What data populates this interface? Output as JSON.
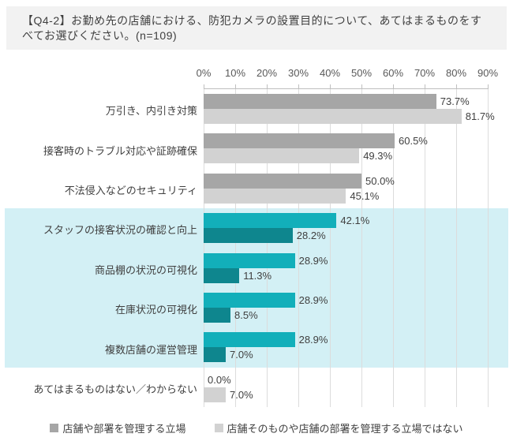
{
  "title": "【Q4-2】お勤め先の店舗における、防犯カメラの設置目的について、あてはまるものをすべてお選びください。(n=109)",
  "chart_data": {
    "type": "bar",
    "orientation": "horizontal",
    "title": "",
    "xlabel": "",
    "ylabel": "",
    "xlim": [
      0,
      90
    ],
    "x_ticks": [
      "0%",
      "10%",
      "20%",
      "30%",
      "40%",
      "50%",
      "60%",
      "70%",
      "80%",
      "90%"
    ],
    "grid": true,
    "legend_position": "bottom",
    "categories": [
      "万引き、内引き対策",
      "接客時のトラブル対応や証跡確保",
      "不法侵入などのセキュリティ",
      "スタッフの接客状況の確認と向上",
      "商品棚の状況の可視化",
      "在庫状況の可視化",
      "複数店舗の運営管理",
      "あてはまるものはない／わからない"
    ],
    "series": [
      {
        "name": "店舗や部署を管理する立場",
        "values": [
          73.7,
          60.5,
          50.0,
          42.1,
          28.9,
          28.9,
          28.9,
          0.0
        ]
      },
      {
        "name": "店舗そのものや店舗の部署を管理する立場ではない",
        "values": [
          81.7,
          49.3,
          45.1,
          28.2,
          11.3,
          8.5,
          7.0,
          7.0
        ]
      }
    ],
    "highlighted_category_indexes": [
      3,
      4,
      5,
      6
    ]
  },
  "colors": {
    "series1_default": "#A6A6A6",
    "series2_default": "#D2D2D2",
    "series1_highlight": "#12AFBA",
    "series2_highlight": "#0E868E",
    "highlight_band": "#D3F0F5",
    "title_bg": "#F2F2F2",
    "gridline": "#DCDCDC",
    "axis_line": "#BFBFBF",
    "text": "#404040",
    "axis_text": "#595959"
  },
  "legend": {
    "items": [
      {
        "label": "店舗や部署を管理する立場",
        "color_key": "series1_default"
      },
      {
        "label": "店舗そのものや店舗の部署を管理する立場ではない",
        "color_key": "series2_default"
      }
    ]
  }
}
